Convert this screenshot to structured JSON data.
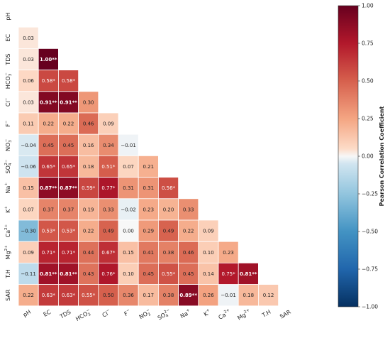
{
  "chart_data": {
    "type": "heatmap",
    "variables": [
      "pH",
      "EC",
      "TDS",
      "HCO3",
      "Cl",
      "F",
      "NO3",
      "SO4",
      "Na",
      "K",
      "Ca",
      "Mg",
      "T.H",
      "SAR"
    ],
    "labels_base": [
      "pH",
      "EC",
      "TDS",
      "HCO",
      "Cl",
      "F",
      "NO",
      "SO",
      "Na",
      "K",
      "Ca",
      "Mg",
      "T.H",
      "SAR"
    ],
    "labels_sub": [
      "",
      "",
      "",
      "3",
      "",
      "",
      "3",
      "4",
      "",
      "",
      "",
      "",
      "",
      ""
    ],
    "labels_sup": [
      "",
      "",
      "",
      "−",
      "−",
      "−",
      "−",
      "2−",
      "+",
      "+",
      "2+",
      "2+",
      "",
      ""
    ],
    "matrix_lower": [
      [],
      [
        "0.03"
      ],
      [
        "0.03",
        "1.00**"
      ],
      [
        "0.06",
        "0.58*",
        "0.58*"
      ],
      [
        "0.03",
        "0.91**",
        "0.91**",
        "0.30"
      ],
      [
        "0.11",
        "0.22",
        "0.22",
        "0.46",
        "0.09"
      ],
      [
        "−0.04",
        "0.45",
        "0.45",
        "0.16",
        "0.34",
        "−0.01"
      ],
      [
        "−0.06",
        "0.65*",
        "0.65*",
        "0.18",
        "0.51*",
        "0.07",
        "0.21"
      ],
      [
        "0.15",
        "0.87**",
        "0.87**",
        "0.59*",
        "0.77*",
        "0.31",
        "0.31",
        "0.56*"
      ],
      [
        "0.07",
        "0.37",
        "0.37",
        "0.19",
        "0.33",
        "−0.02",
        "0.23",
        "0.20",
        "0.33"
      ],
      [
        "−0.30",
        "0.53*",
        "0.53*",
        "0.22",
        "0.49",
        "0.00",
        "0.29",
        "0.49",
        "0.22",
        "0.09"
      ],
      [
        "0.09",
        "0.71*",
        "0.71*",
        "0.44",
        "0.67*",
        "0.15",
        "0.41",
        "0.38",
        "0.46",
        "0.10",
        "0.23"
      ],
      [
        "−0.11",
        "0.81**",
        "0.81**",
        "0.43",
        "0.76*",
        "0.10",
        "0.45",
        "0.55*",
        "0.45",
        "0.14",
        "0.75*",
        "0.81**"
      ],
      [
        "0.22",
        "0.63*",
        "0.63*",
        "0.55*",
        "0.50",
        "0.36",
        "0.17",
        "0.38",
        "0.89**",
        "0.26",
        "−0.01",
        "0.18",
        "0.12"
      ]
    ],
    "colorbar": {
      "label": "Pearson Correlation Coefficient",
      "range": [
        -1.0,
        1.0
      ],
      "ticks": [
        "−1.00",
        "−0.75",
        "−0.50",
        "−0.25",
        "0.00",
        "0.25",
        "0.50",
        "0.75",
        "1.00"
      ],
      "colormap": "RdBu_r"
    }
  }
}
